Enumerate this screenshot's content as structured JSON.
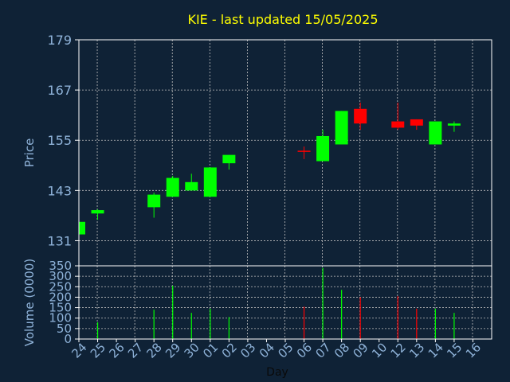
{
  "chart_data": {
    "type": "candlestick",
    "title": "KIE - last updated 15/05/2025",
    "price_axis": {
      "label": "Price",
      "ylim": [
        125,
        179
      ],
      "ticks": [
        131,
        143,
        155,
        167,
        179
      ]
    },
    "volume_axis": {
      "label": "Volume (0000)",
      "ylim": [
        0,
        350
      ],
      "ticks": [
        0,
        50,
        100,
        150,
        200,
        250,
        300,
        350
      ]
    },
    "x_axis": {
      "label": "Day",
      "tick_labels": [
        "24",
        "25",
        "26",
        "27",
        "28",
        "29",
        "30",
        "01",
        "02",
        "03",
        "04",
        "05",
        "06",
        "07",
        "08",
        "09",
        "10",
        "12",
        "13",
        "14",
        "15",
        "16"
      ]
    },
    "grid": true,
    "colors": {
      "up": "#00ff00",
      "down": "#ff0000",
      "title": "#ffff00",
      "axis_text": "#8fb3d9",
      "frame": "#ffffff",
      "grid": "#c0c0c0",
      "background": "#0f2236"
    },
    "candles": [
      {
        "day": "24",
        "open": 132.5,
        "high": 135.5,
        "low": 132.5,
        "close": 135.5
      },
      {
        "day": "25",
        "open": 137.5,
        "high": 138.5,
        "low": 136.0,
        "close": 138.3
      },
      {
        "day": "28",
        "open": 139.0,
        "high": 142.5,
        "low": 136.5,
        "close": 142.0
      },
      {
        "day": "29",
        "open": 141.5,
        "high": 146.5,
        "low": 141.5,
        "close": 146.0
      },
      {
        "day": "30",
        "open": 143.0,
        "high": 147.0,
        "low": 143.0,
        "close": 145.0
      },
      {
        "day": "01",
        "open": 141.5,
        "high": 148.5,
        "low": 141.5,
        "close": 148.5
      },
      {
        "day": "02",
        "open": 149.5,
        "high": 151.5,
        "low": 148.0,
        "close": 151.5
      },
      {
        "day": "06",
        "open": 152.5,
        "high": 153.5,
        "low": 150.5,
        "close": 152.4
      },
      {
        "day": "07",
        "open": 150.0,
        "high": 157.5,
        "low": 150.0,
        "close": 156.0
      },
      {
        "day": "08",
        "open": 154.0,
        "high": 162.0,
        "low": 154.0,
        "close": 162.0
      },
      {
        "day": "09",
        "open": 162.5,
        "high": 164.0,
        "low": 157.5,
        "close": 159.0
      },
      {
        "day": "12",
        "open": 159.5,
        "high": 164.0,
        "low": 157.5,
        "close": 158.0
      },
      {
        "day": "13",
        "open": 160.0,
        "high": 160.0,
        "low": 157.5,
        "close": 158.5
      },
      {
        "day": "14",
        "open": 154.0,
        "high": 159.5,
        "low": 154.0,
        "close": 159.5
      },
      {
        "day": "15",
        "open": 158.5,
        "high": 159.5,
        "low": 157.0,
        "close": 159.0
      }
    ],
    "volume": [
      {
        "day": "25",
        "value": 80
      },
      {
        "day": "28",
        "value": 140
      },
      {
        "day": "29",
        "value": 255
      },
      {
        "day": "30",
        "value": 125
      },
      {
        "day": "01",
        "value": 145
      },
      {
        "day": "02",
        "value": 105
      },
      {
        "day": "06",
        "value": 155
      },
      {
        "day": "07",
        "value": 340
      },
      {
        "day": "08",
        "value": 235
      },
      {
        "day": "09",
        "value": 200
      },
      {
        "day": "12",
        "value": 205
      },
      {
        "day": "13",
        "value": 145
      },
      {
        "day": "14",
        "value": 145
      },
      {
        "day": "15",
        "value": 125
      }
    ]
  }
}
